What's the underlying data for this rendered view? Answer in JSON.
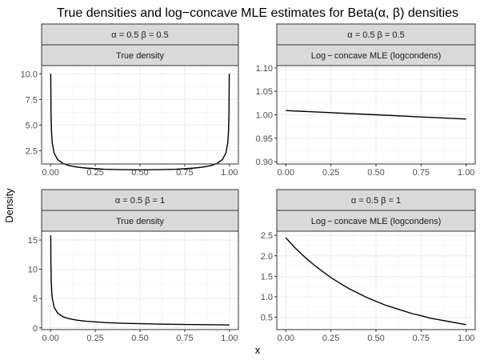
{
  "chart_data": {
    "type": "line",
    "title": "True densities and log−concave MLE estimates for Beta(α, β) densities",
    "xlabel": "x",
    "ylabel": "Density",
    "grid": true,
    "panels": [
      {
        "id": "p1",
        "strip_top": "α = 0.5   β = 0.5",
        "strip_bottom": "True density",
        "xlim": [
          -0.05,
          1.05
        ],
        "ylim": [
          1.2,
          10.8
        ],
        "xticks": [
          0,
          0.25,
          0.5,
          0.75,
          1
        ],
        "xtick_labels": [
          "0.00",
          "0.25",
          "0.50",
          "0.75",
          "1.00"
        ],
        "yticks": [
          2.5,
          5,
          7.5,
          10
        ],
        "ytick_labels": [
          "2.5",
          "5.0",
          "7.5",
          "10.0"
        ],
        "curve": {
          "x": [
            0.001,
            0.003,
            0.006,
            0.01,
            0.02,
            0.04,
            0.07,
            0.1,
            0.15,
            0.2,
            0.3,
            0.4,
            0.5,
            0.6,
            0.7,
            0.8,
            0.85,
            0.9,
            0.93,
            0.96,
            0.98,
            0.99,
            0.994,
            0.997,
            0.999
          ],
          "y": [
            10.0,
            5.82,
            4.12,
            3.2,
            2.27,
            1.62,
            1.25,
            1.06,
            0.89,
            0.8,
            0.69,
            0.65,
            0.64,
            0.65,
            0.69,
            0.8,
            0.89,
            1.06,
            1.25,
            1.62,
            2.27,
            3.2,
            4.12,
            5.82,
            10.0
          ]
        }
      },
      {
        "id": "p2",
        "strip_top": "α = 0.5   β = 0.5",
        "strip_bottom": "Log − concave MLE (logcondens)",
        "xlim": [
          -0.05,
          1.05
        ],
        "ylim": [
          0.895,
          1.105
        ],
        "xticks": [
          0,
          0.25,
          0.5,
          0.75,
          1
        ],
        "xtick_labels": [
          "0.00",
          "0.25",
          "0.50",
          "0.75",
          "1.00"
        ],
        "yticks": [
          0.9,
          0.95,
          1.0,
          1.05,
          1.1
        ],
        "ytick_labels": [
          "0.90",
          "0.95",
          "1.00",
          "1.05",
          "1.10"
        ],
        "curve": {
          "x": [
            0,
            0.25,
            0.5,
            0.75,
            1
          ],
          "y": [
            1.009,
            1.0045,
            1.0,
            0.9955,
            0.991
          ]
        }
      },
      {
        "id": "p3",
        "strip_top": "α = 0.5   β = 1",
        "strip_bottom": "True density",
        "xlim": [
          -0.05,
          1.05
        ],
        "ylim": [
          -0.3,
          16.5
        ],
        "xticks": [
          0,
          0.25,
          0.5,
          0.75,
          1
        ],
        "xtick_labels": [
          "0.00",
          "0.25",
          "0.50",
          "0.75",
          "1.00"
        ],
        "yticks": [
          0,
          5,
          10,
          15
        ],
        "ytick_labels": [
          "0",
          "5",
          "10",
          "15"
        ],
        "curve": {
          "x": [
            0.001,
            0.002,
            0.004,
            0.007,
            0.01,
            0.02,
            0.04,
            0.07,
            0.1,
            0.15,
            0.2,
            0.3,
            0.4,
            0.5,
            0.6,
            0.7,
            0.8,
            0.9,
            1.0
          ],
          "y": [
            15.8,
            11.18,
            7.91,
            5.98,
            5.0,
            3.54,
            2.5,
            1.89,
            1.58,
            1.29,
            1.12,
            0.91,
            0.79,
            0.71,
            0.65,
            0.6,
            0.56,
            0.53,
            0.5
          ]
        }
      },
      {
        "id": "p4",
        "strip_top": "α = 0.5   β = 1",
        "strip_bottom": "Log − concave MLE (logcondens)",
        "xlim": [
          -0.05,
          1.05
        ],
        "ylim": [
          0.2,
          2.6
        ],
        "xticks": [
          0,
          0.25,
          0.5,
          0.75,
          1
        ],
        "xtick_labels": [
          "0.00",
          "0.25",
          "0.50",
          "0.75",
          "1.00"
        ],
        "yticks": [
          0.5,
          1.0,
          1.5,
          2.0,
          2.5
        ],
        "ytick_labels": [
          "0.5",
          "1.0",
          "1.5",
          "2.0",
          "2.5"
        ],
        "curve": {
          "x": [
            0,
            0.05,
            0.1,
            0.15,
            0.2,
            0.25,
            0.3,
            0.35,
            0.4,
            0.45,
            0.5,
            0.55,
            0.6,
            0.65,
            0.7,
            0.75,
            0.8,
            0.85,
            0.9,
            0.95,
            1.0
          ],
          "y": [
            2.44,
            2.2,
            1.99,
            1.8,
            1.63,
            1.47,
            1.33,
            1.2,
            1.09,
            0.98,
            0.89,
            0.8,
            0.73,
            0.66,
            0.59,
            0.54,
            0.48,
            0.44,
            0.4,
            0.36,
            0.32
          ]
        }
      }
    ]
  }
}
